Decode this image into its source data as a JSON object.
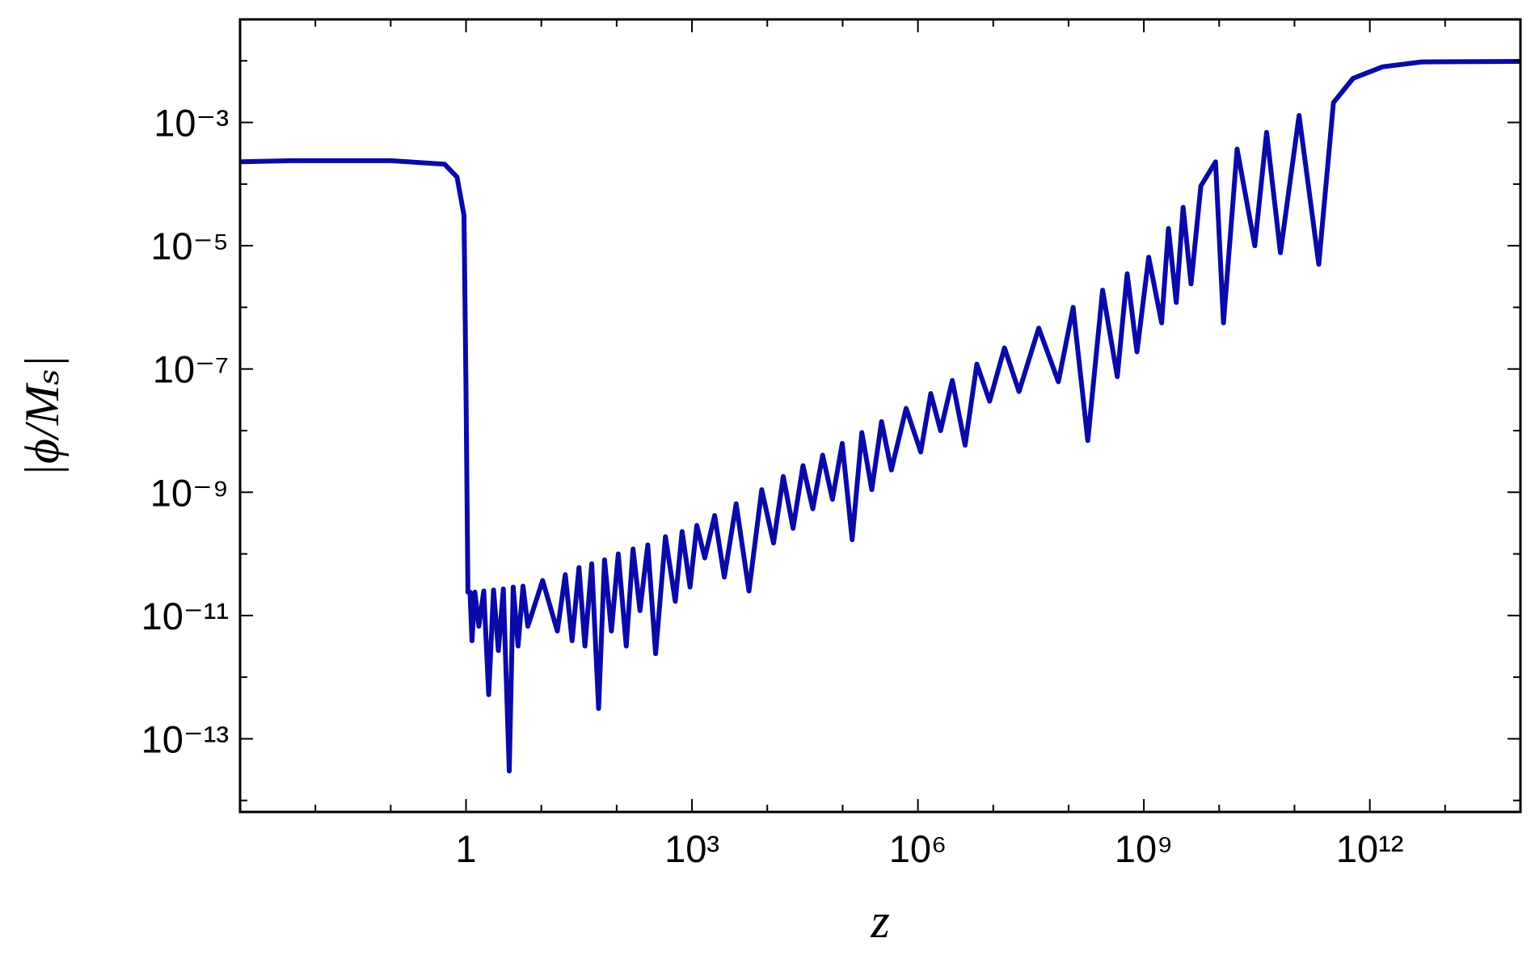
{
  "chart_data": {
    "type": "line",
    "xlabel": "z",
    "ylabel": "|ϕ/Mₛ|",
    "xscale": "log",
    "yscale": "log",
    "xlim": [
      0.001,
      100000000000000.0
    ],
    "ylim": [
      6.5e-15,
      0.047
    ],
    "xticks": [
      1,
      {
        "value": 1000,
        "label": "10³"
      },
      {
        "value": 1000000.0,
        "label": "10⁶"
      },
      {
        "value": 1000000000.0,
        "label": "10⁹"
      },
      {
        "value": 1000000000000.0,
        "label": "10¹²"
      }
    ],
    "xminorticks": [
      0.01,
      0.1,
      10,
      100,
      10000,
      100000,
      10000000.0,
      100000000.0,
      10000000000.0,
      100000000000.0,
      10000000000000.0
    ],
    "yticks": [
      {
        "value": 0.001,
        "label": "10⁻³"
      },
      {
        "value": 1e-05,
        "label": "10⁻⁵"
      },
      {
        "value": 1e-07,
        "label": "10⁻⁷"
      },
      {
        "value": 1e-09,
        "label": "10⁻⁹"
      },
      {
        "value": 1e-11,
        "label": "10⁻¹¹"
      },
      {
        "value": 1e-13,
        "label": "10⁻¹³"
      }
    ],
    "yminorticks": [
      0.01,
      0.0001,
      1e-06,
      1e-08,
      1e-10,
      1e-12,
      1e-14
    ],
    "x": [
      0.001,
      0.0049,
      0.1,
      0.52,
      0.76,
      0.94,
      1,
      1.06,
      1.13,
      1.2,
      1.31,
      1.48,
      1.72,
      2.0,
      2.32,
      2.69,
      3.13,
      3.75,
      4.23,
      4.91,
      5.71,
      6.62,
      10.4,
      16.3,
      20.8,
      25.6,
      31.6,
      37.9,
      46.7,
      57.6,
      69.0,
      85.2,
      105,
      134,
      165,
      204,
      259,
      329,
      444,
      600,
      740,
      942,
      1160,
      1480,
      2000,
      2690,
      3860,
      5710,
      8440,
      12100,
      16300,
      22000,
      29800,
      40200,
      54300,
      73300,
      98900,
      134000,
      180000,
      244000,
      329000,
      444000,
      697000,
      1090000.0,
      1480000.0,
      2000000.0,
      2860000.0,
      4230000.0,
      6060000.0,
      8950000.0,
      14100000.0,
      22000000.0,
      40200000.0,
      73300000.0,
      115000000.0,
      180000000.0,
      283000000.0,
      444000000.0,
      600000000.0,
      810000000.0,
      1160000000.0,
      1720000000.0,
      2120000000.0,
      2690000000.0,
      3320000000.0,
      4230000000.0,
      5710000000.0,
      8950000000.0,
      11400000000.0,
      17300000000.0,
      29700000000.0,
      42600000000.0,
      65000000000.0,
      115000000000.0,
      210000000000.0,
      329000000000.0,
      600000000000.0,
      1480000000000.0,
      4910000000000.0,
      100000000000000.0
    ],
    "series": [
      {
        "color": "#0a0aa8",
        "values": [
          0.00023,
          0.00024,
          0.00024,
          0.00021,
          0.00013,
          3.1e-05,
          4.3e-08,
          2.4e-11,
          2.4e-11,
          3.9e-12,
          2.4e-11,
          6.7e-12,
          2.5e-11,
          5.2e-13,
          2.6e-11,
          2.7e-12,
          2.7e-11,
          3e-14,
          2.9e-11,
          3.2e-12,
          3e-11,
          6.7e-12,
          3.7e-11,
          5.6e-12,
          4.6e-11,
          3.9e-12,
          6e-11,
          3.2e-12,
          6.9e-11,
          3.1e-13,
          8e-11,
          5.6e-12,
          1e-10,
          3.2e-12,
          1.2e-10,
          1.2e-11,
          1.4e-10,
          2.4e-12,
          1.9e-10,
          1.7e-11,
          2.3e-10,
          2.9e-11,
          2.9e-10,
          8.6e-11,
          4.2e-10,
          4.2e-11,
          6.5e-10,
          2.5e-11,
          1.1e-09,
          1.5e-10,
          1.8e-09,
          2.6e-10,
          2.7e-09,
          5.4e-10,
          4e-09,
          7.7e-10,
          6.2e-09,
          1.7e-10,
          9.3e-09,
          1.1e-09,
          1.4e-08,
          2.3e-09,
          2.3e-08,
          4.5e-09,
          4e-08,
          1e-08,
          6.5e-08,
          5.8e-09,
          1.2e-07,
          3e-08,
          2.2e-07,
          4.3e-08,
          4.6e-07,
          6.2e-08,
          1e-06,
          6.9e-09,
          1.9e-06,
          7.5e-08,
          3.5e-06,
          1.9e-07,
          6.5e-06,
          5.6e-07,
          1.9e-05,
          1.2e-06,
          4.2e-05,
          2.4e-06,
          9.3e-05,
          0.00023,
          5.6e-07,
          0.00037,
          1e-05,
          0.00069,
          7.7e-06,
          0.0013,
          5e-06,
          0.0021,
          0.0052,
          0.008,
          0.0096,
          0.0098
        ]
      }
    ]
  }
}
